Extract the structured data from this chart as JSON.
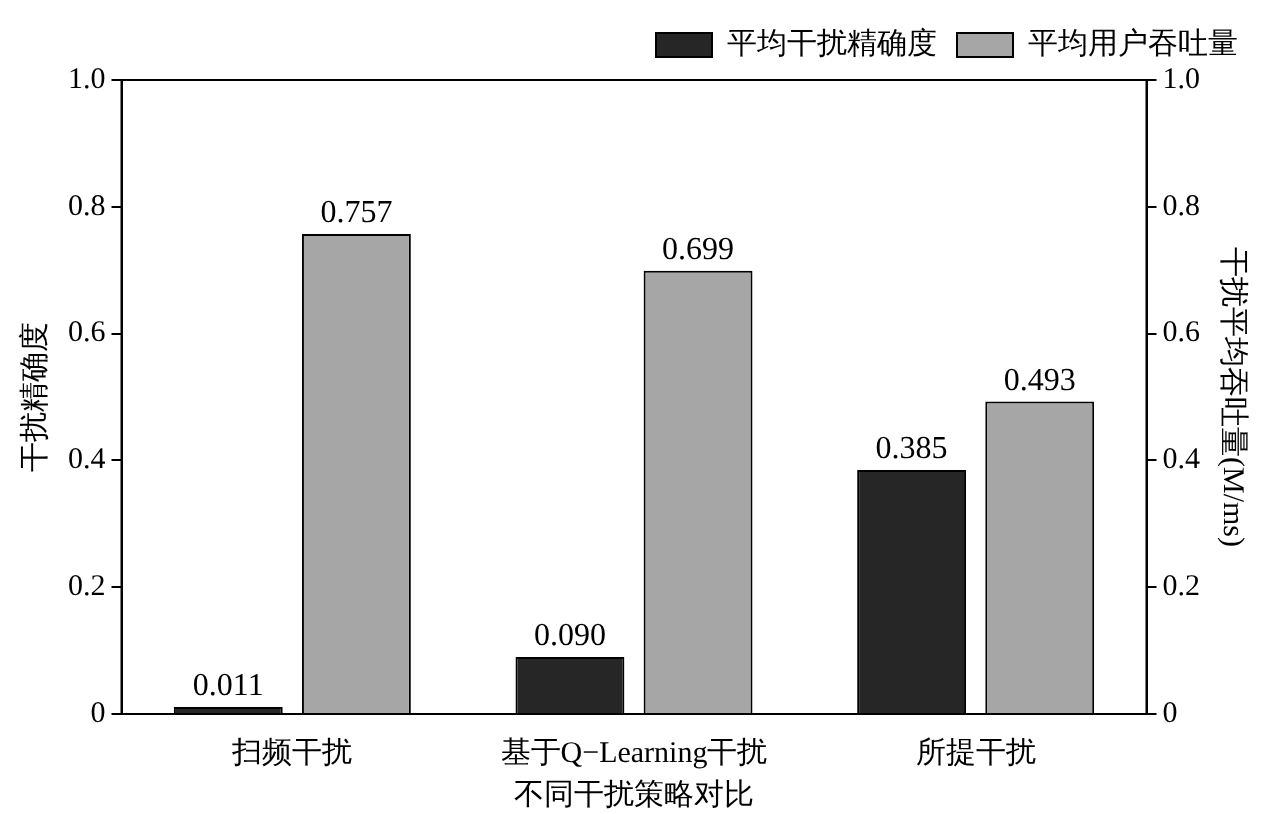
{
  "chart_data": {
    "type": "bar",
    "xlabel": "不同干扰策略对比",
    "ylabel": "干扰精确度",
    "y2label": "干扰平均吞吐量(M/ms)",
    "categories": [
      "扫频干扰",
      "基于Q−Learning干扰",
      "所提干扰"
    ],
    "series": [
      {
        "name": "平均干扰精确度",
        "color": "#262626",
        "values": [
          0.011,
          0.09,
          0.385
        ],
        "value_labels": [
          "0.011",
          "0.090",
          "0.385"
        ]
      },
      {
        "name": "平均用户吞吐量",
        "color": "#a6a6a6",
        "axis": "y2",
        "values": [
          0.757,
          0.699,
          0.493
        ],
        "value_labels": [
          "0.757",
          "0.699",
          "0.493"
        ]
      }
    ],
    "ylim": [
      0,
      1
    ],
    "yticks": [
      0,
      0.2,
      0.4,
      0.6,
      0.8,
      {
        "value": 1,
        "label": "1.0"
      }
    ],
    "y2lim": [
      0,
      1
    ],
    "y2ticks": [
      0,
      0.2,
      0.4,
      0.6,
      0.8,
      {
        "value": 1,
        "label": "1.0"
      }
    ],
    "grid": false,
    "legend": "top right"
  }
}
